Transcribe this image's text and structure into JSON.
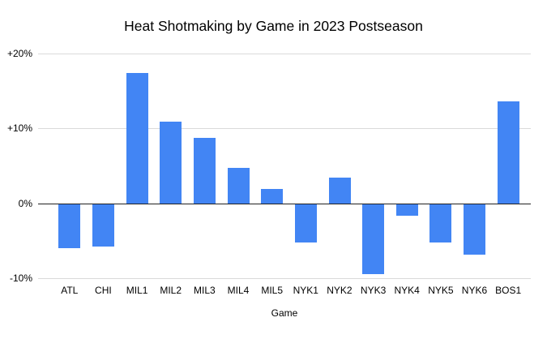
{
  "chart_data": {
    "type": "bar",
    "title": "Heat Shotmaking by Game in 2023 Postseason",
    "xlabel": "Game",
    "ylabel": "",
    "categories": [
      "ATL",
      "CHI",
      "MIL1",
      "MIL2",
      "MIL3",
      "MIL4",
      "MIL5",
      "NYK1",
      "NYK2",
      "NYK3",
      "NYK4",
      "NYK5",
      "NYK6",
      "BOS1"
    ],
    "values": [
      -5.9,
      -5.7,
      17.4,
      10.9,
      8.7,
      4.7,
      1.9,
      -5.1,
      3.4,
      -9.4,
      -1.5,
      -5.1,
      -6.8,
      13.6
    ],
    "ylim": [
      -10,
      20
    ],
    "yticks": [
      {
        "value": 20,
        "label": "+20%"
      },
      {
        "value": 10,
        "label": "+10%"
      },
      {
        "value": 0,
        "label": "0%"
      },
      {
        "value": -10,
        "label": "-10%"
      }
    ],
    "grid": true,
    "legend": "none"
  },
  "colors": {
    "bar": "#4285f4",
    "gridline": "#dadada",
    "zero_axis": "#212121",
    "background": "#ffffff",
    "text": "#000000"
  }
}
